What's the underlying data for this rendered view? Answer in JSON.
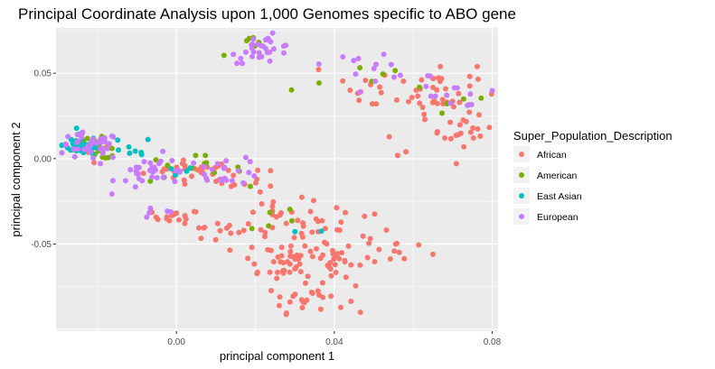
{
  "chart_data": {
    "type": "scatter",
    "title": "Principal Coordinate Analysis upon 1,000 Genomes specific to ABO gene",
    "xlabel": "principal component 1",
    "ylabel": "principal component 2",
    "xlim": [
      -0.0305,
      0.0815
    ],
    "ylim": [
      -0.101,
      0.0765
    ],
    "x_ticks": [
      0.0,
      0.04,
      0.08
    ],
    "x_tick_labels": [
      "0.00",
      "0.04",
      "0.08"
    ],
    "y_ticks": [
      -0.05,
      0.0,
      0.05
    ],
    "y_tick_labels": [
      "-0.05",
      "0.00",
      "0.05"
    ],
    "grid": true,
    "legend_position": "right",
    "legend_title": "Super_Population_Description",
    "series": [
      {
        "name": "African",
        "color": "#F8766D",
        "clusters": [
          {
            "cx": 0.004,
            "cy": -0.007,
            "sx": 0.006,
            "sy": 0.003,
            "n": 30
          },
          {
            "cx": 0.018,
            "cy": -0.013,
            "sx": 0.004,
            "sy": 0.004,
            "n": 12
          },
          {
            "cx": 0.0,
            "cy": -0.034,
            "sx": 0.003,
            "sy": 0.002,
            "n": 16
          },
          {
            "cx": 0.01,
            "cy": -0.043,
            "sx": 0.004,
            "sy": 0.003,
            "n": 12
          },
          {
            "cx": 0.025,
            "cy": -0.037,
            "sx": 0.006,
            "sy": 0.007,
            "n": 22
          },
          {
            "cx": 0.04,
            "cy": -0.04,
            "sx": 0.007,
            "sy": 0.008,
            "n": 25
          },
          {
            "cx": 0.025,
            "cy": -0.06,
            "sx": 0.005,
            "sy": 0.006,
            "n": 32
          },
          {
            "cx": 0.04,
            "cy": -0.06,
            "sx": 0.006,
            "sy": 0.007,
            "n": 32
          },
          {
            "cx": 0.033,
            "cy": -0.082,
            "sx": 0.005,
            "sy": 0.004,
            "n": 25
          },
          {
            "cx": 0.056,
            "cy": -0.054,
            "sx": 0.005,
            "sy": 0.005,
            "n": 10
          },
          {
            "cx": 0.066,
            "cy": 0.04,
            "sx": 0.005,
            "sy": 0.008,
            "n": 35
          },
          {
            "cx": 0.074,
            "cy": 0.014,
            "sx": 0.003,
            "sy": 0.005,
            "n": 18
          },
          {
            "cx": 0.05,
            "cy": 0.042,
            "sx": 0.008,
            "sy": 0.008,
            "n": 14
          },
          {
            "cx": 0.058,
            "cy": 0.015,
            "sx": 0.005,
            "sy": 0.005,
            "n": 6
          },
          {
            "cx": -0.018,
            "cy": 0.004,
            "sx": 0.003,
            "sy": 0.003,
            "n": 3
          }
        ]
      },
      {
        "name": "American",
        "color": "#7CAE00",
        "clusters": [
          {
            "cx": -0.02,
            "cy": 0.006,
            "sx": 0.004,
            "sy": 0.003,
            "n": 18
          },
          {
            "cx": 0.003,
            "cy": -0.006,
            "sx": 0.007,
            "sy": 0.004,
            "n": 14
          },
          {
            "cx": 0.02,
            "cy": 0.066,
            "sx": 0.004,
            "sy": 0.003,
            "n": 6
          },
          {
            "cx": 0.025,
            "cy": -0.035,
            "sx": 0.004,
            "sy": 0.005,
            "n": 5
          },
          {
            "cx": 0.045,
            "cy": 0.045,
            "sx": 0.01,
            "sy": 0.008,
            "n": 6
          },
          {
            "cx": 0.07,
            "cy": 0.035,
            "sx": 0.006,
            "sy": 0.008,
            "n": 6
          }
        ]
      },
      {
        "name": "East Asian",
        "color": "#00BFC4",
        "clusters": [
          {
            "cx": -0.024,
            "cy": 0.008,
            "sx": 0.003,
            "sy": 0.003,
            "n": 35
          },
          {
            "cx": -0.012,
            "cy": 0.005,
            "sx": 0.003,
            "sy": 0.004,
            "n": 8
          },
          {
            "cx": 0.0,
            "cy": -0.008,
            "sx": 0.003,
            "sy": 0.002,
            "n": 4
          },
          {
            "cx": 0.032,
            "cy": -0.045,
            "sx": 0.003,
            "sy": 0.003,
            "n": 2
          }
        ]
      },
      {
        "name": "European",
        "color": "#C77CFF",
        "clusters": [
          {
            "cx": -0.022,
            "cy": 0.007,
            "sx": 0.004,
            "sy": 0.004,
            "n": 38
          },
          {
            "cx": -0.005,
            "cy": -0.008,
            "sx": 0.005,
            "sy": 0.005,
            "n": 32
          },
          {
            "cx": 0.012,
            "cy": -0.007,
            "sx": 0.005,
            "sy": 0.004,
            "n": 22
          },
          {
            "cx": 0.022,
            "cy": 0.064,
            "sx": 0.004,
            "sy": 0.004,
            "n": 30
          },
          {
            "cx": 0.05,
            "cy": 0.055,
            "sx": 0.006,
            "sy": 0.004,
            "n": 14
          },
          {
            "cx": 0.068,
            "cy": 0.035,
            "sx": 0.005,
            "sy": 0.006,
            "n": 12
          },
          {
            "cx": -0.005,
            "cy": -0.032,
            "sx": 0.003,
            "sy": 0.002,
            "n": 5
          }
        ]
      }
    ]
  }
}
